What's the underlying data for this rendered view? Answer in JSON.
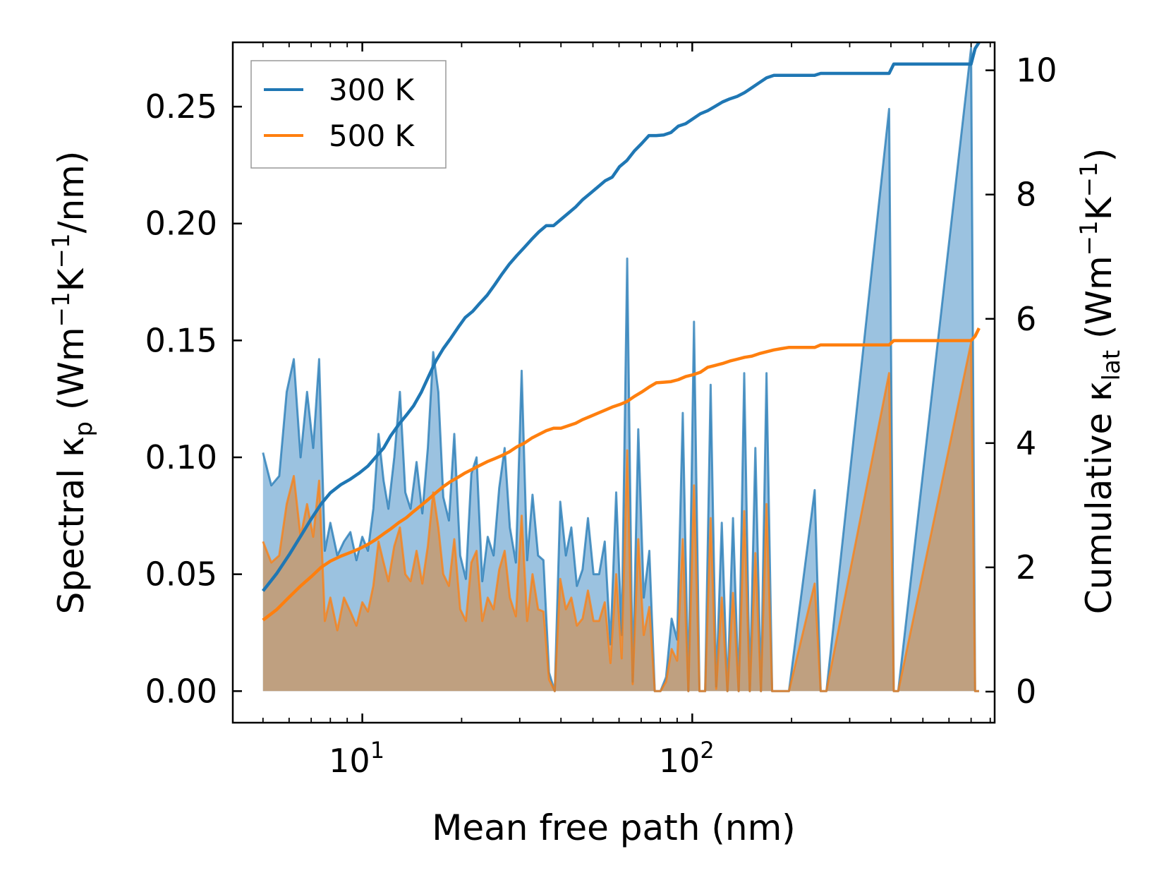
{
  "chart_data": {
    "type": "line",
    "xlabel": "Mean free path (nm)",
    "ylabel_left": "Spectral κ",
    "ylabel_left_sub": "p",
    "ylabel_left_units": {
      "open": " (Wm",
      "exp1": "−1",
      "mid": "K",
      "exp2": "−1",
      "close": "/nm)"
    },
    "ylabel_right": "Cumulative κ",
    "ylabel_right_sub": "lat",
    "ylabel_right_units": {
      "open": " (Wm",
      "exp1": "−1",
      "mid": "K",
      "exp2": "−1",
      "close": ")"
    },
    "x_scale": "log",
    "xlim": [
      4.05,
      825
    ],
    "xticks": [
      {
        "value": 10,
        "base": "10",
        "exp": "1"
      },
      {
        "value": 100,
        "base": "10",
        "exp": "2"
      }
    ],
    "ylim_left": [
      -0.0135,
      0.2775
    ],
    "yticks_left": [
      "0.00",
      "0.05",
      "0.10",
      "0.15",
      "0.20",
      "0.25"
    ],
    "ylim_right": [
      -0.5,
      10.45
    ],
    "yticks_right": [
      "0",
      "2",
      "4",
      "6",
      "8",
      "10"
    ],
    "legend": {
      "position": "top-left",
      "entries": [
        "300 K",
        "500 K"
      ]
    },
    "colors": {
      "s300": "#1f77b4",
      "s500": "#ff7f0e",
      "fill300": "#8dbadc",
      "fill500": "#c49b72"
    },
    "series": [
      {
        "name": "300 K",
        "spectral": {
          "x": [
            5.0,
            5.3,
            5.6,
            5.9,
            6.2,
            6.5,
            6.8,
            7.1,
            7.4,
            7.7,
            8.0,
            8.4,
            8.8,
            9.2,
            9.6,
            10.0,
            10.4,
            10.8,
            11.2,
            11.6,
            12.0,
            12.5,
            13.0,
            13.5,
            14.0,
            14.6,
            15.2,
            15.8,
            16.4,
            17.0,
            17.6,
            18.3,
            19.0,
            19.8,
            20.6,
            21.4,
            22.2,
            23.1,
            24.0,
            25.0,
            26.0,
            27.0,
            28.0,
            29.2,
            30.4,
            31.6,
            32.8,
            34.1,
            35.4,
            36.8,
            38.3,
            39.8,
            41.4,
            43.0,
            44.7,
            46.5,
            48.3,
            50.2,
            52.2,
            54.3,
            56.5,
            58.8,
            61.1,
            63.5,
            66.0,
            68.6,
            71.3,
            74.1,
            77.0,
            80.1,
            83.3,
            86.6,
            90.0,
            93.6,
            97.3,
            101.2,
            105.2,
            109.4,
            113.7,
            118.2,
            122.9,
            127.8,
            132.9,
            138.2,
            143.7,
            149.4,
            155.3,
            161.5,
            167.9,
            174.6,
            181.6,
            188.8,
            196.3,
            235,
            245,
            255,
            395,
            408,
            421,
            700,
            720,
            740
          ],
          "y": [
            0.102,
            0.088,
            0.092,
            0.128,
            0.142,
            0.1,
            0.128,
            0.104,
            0.142,
            0.06,
            0.072,
            0.058,
            0.064,
            0.068,
            0.056,
            0.066,
            0.06,
            0.078,
            0.11,
            0.09,
            0.078,
            0.1,
            0.128,
            0.085,
            0.078,
            0.098,
            0.076,
            0.104,
            0.145,
            0.128,
            0.083,
            0.073,
            0.11,
            0.058,
            0.048,
            0.093,
            0.1,
            0.047,
            0.066,
            0.058,
            0.087,
            0.104,
            0.07,
            0.055,
            0.137,
            0.056,
            0.084,
            0.058,
            0.056,
            0.008,
            0.0,
            0.081,
            0.058,
            0.07,
            0.045,
            0.052,
            0.074,
            0.05,
            0.05,
            0.064,
            0.02,
            0.085,
            0.024,
            0.185,
            0.004,
            0.112,
            0.04,
            0.06,
            0.0,
            0.0,
            0.006,
            0.031,
            0.022,
            0.119,
            0.0,
            0.158,
            0.0,
            0.0,
            0.131,
            0.002,
            0.072,
            0.0,
            0.074,
            0.0,
            0.136,
            0.0,
            0.104,
            0.0,
            0.136,
            0.0,
            0.0,
            0.0,
            0.0,
            0.086,
            0.0,
            0.0,
            0.249,
            0.0,
            0.0,
            0.275,
            0.0,
            0.0
          ]
        },
        "cumulative": {
          "x": [
            5.0,
            5.5,
            6.0,
            6.5,
            7.0,
            7.5,
            8.0,
            8.6,
            9.2,
            9.8,
            10.4,
            11.0,
            11.6,
            12.2,
            12.9,
            13.6,
            14.3,
            15.1,
            15.9,
            16.7,
            17.6,
            18.5,
            19.5,
            20.5,
            21.6,
            22.7,
            23.9,
            25.2,
            26.5,
            27.9,
            29.4,
            31.0,
            32.6,
            34.3,
            36.1,
            38.0,
            40.0,
            42.1,
            44.3,
            46.6,
            49.1,
            51.7,
            54.4,
            57.2,
            60.2,
            63.4,
            66.7,
            70.2,
            73.9,
            77.8,
            81.9,
            86.2,
            90.7,
            95.5,
            100.5,
            105.8,
            111.4,
            117.3,
            123.5,
            130.0,
            136.8,
            144.0,
            151.6,
            159.6,
            168.0,
            176.8,
            186.1,
            195.9,
            235,
            245,
            395,
            408,
            700,
            720,
            740
          ],
          "y": [
            1.62,
            1.9,
            2.2,
            2.5,
            2.78,
            3.02,
            3.2,
            3.33,
            3.42,
            3.52,
            3.63,
            3.78,
            3.92,
            4.12,
            4.3,
            4.45,
            4.6,
            4.82,
            5.08,
            5.32,
            5.52,
            5.68,
            5.86,
            6.02,
            6.12,
            6.25,
            6.38,
            6.55,
            6.72,
            6.88,
            7.02,
            7.15,
            7.28,
            7.4,
            7.5,
            7.5,
            7.6,
            7.7,
            7.8,
            7.92,
            8.02,
            8.12,
            8.22,
            8.28,
            8.45,
            8.55,
            8.7,
            8.82,
            8.95,
            8.95,
            8.96,
            9.0,
            9.1,
            9.14,
            9.22,
            9.3,
            9.35,
            9.42,
            9.49,
            9.54,
            9.58,
            9.64,
            9.72,
            9.8,
            9.88,
            9.92,
            9.92,
            9.92,
            9.92,
            9.95,
            9.95,
            10.1,
            10.1,
            10.35,
            10.45
          ]
        }
      },
      {
        "name": "500 K",
        "spectral": {
          "x": [
            5.0,
            5.3,
            5.6,
            5.9,
            6.2,
            6.5,
            6.8,
            7.1,
            7.4,
            7.7,
            8.0,
            8.4,
            8.8,
            9.2,
            9.6,
            10.0,
            10.4,
            10.8,
            11.2,
            11.6,
            12.0,
            12.5,
            13.0,
            13.5,
            14.0,
            14.6,
            15.2,
            15.8,
            16.4,
            17.0,
            17.6,
            18.3,
            19.0,
            19.8,
            20.6,
            21.4,
            22.2,
            23.1,
            24.0,
            25.0,
            26.0,
            27.0,
            28.0,
            29.2,
            30.4,
            31.6,
            32.8,
            34.1,
            35.4,
            36.8,
            38.3,
            39.8,
            41.4,
            43.0,
            44.7,
            46.5,
            48.3,
            50.2,
            52.2,
            54.3,
            56.5,
            58.8,
            61.1,
            63.5,
            66.0,
            68.6,
            71.3,
            74.1,
            77.0,
            80.1,
            83.3,
            86.6,
            90.0,
            93.6,
            97.3,
            101.2,
            105.2,
            109.4,
            113.7,
            118.2,
            122.9,
            127.8,
            132.9,
            138.2,
            143.7,
            149.4,
            155.3,
            161.5,
            167.9,
            174.6,
            181.6,
            188.8,
            196.3,
            235,
            245,
            255,
            395,
            408,
            421,
            700,
            720,
            740
          ],
          "y": [
            0.064,
            0.055,
            0.058,
            0.08,
            0.092,
            0.066,
            0.08,
            0.066,
            0.09,
            0.03,
            0.04,
            0.026,
            0.04,
            0.034,
            0.028,
            0.038,
            0.034,
            0.045,
            0.064,
            0.055,
            0.047,
            0.062,
            0.07,
            0.05,
            0.047,
            0.06,
            0.046,
            0.062,
            0.085,
            0.07,
            0.05,
            0.045,
            0.065,
            0.035,
            0.03,
            0.055,
            0.06,
            0.03,
            0.04,
            0.035,
            0.052,
            0.06,
            0.04,
            0.032,
            0.075,
            0.03,
            0.05,
            0.035,
            0.034,
            0.005,
            0.0,
            0.048,
            0.035,
            0.04,
            0.028,
            0.031,
            0.043,
            0.03,
            0.03,
            0.038,
            0.012,
            0.05,
            0.014,
            0.103,
            0.003,
            0.065,
            0.024,
            0.036,
            0.0,
            0.0,
            0.004,
            0.018,
            0.013,
            0.065,
            0.0,
            0.088,
            0.0,
            0.0,
            0.074,
            0.001,
            0.04,
            0.0,
            0.042,
            0.0,
            0.077,
            0.0,
            0.059,
            0.0,
            0.08,
            0.0,
            0.0,
            0.0,
            0.0,
            0.046,
            0.0,
            0.0,
            0.136,
            0.0,
            0.0,
            0.149,
            0.0,
            0.0
          ]
        },
        "cumulative": {
          "x": [
            5.0,
            5.5,
            6.0,
            6.5,
            7.0,
            7.5,
            8.0,
            8.6,
            9.2,
            9.8,
            10.4,
            11.0,
            11.6,
            12.2,
            12.9,
            13.6,
            14.3,
            15.1,
            15.9,
            16.7,
            17.6,
            18.5,
            19.5,
            20.5,
            21.6,
            22.7,
            23.9,
            25.2,
            26.5,
            27.9,
            29.4,
            31.0,
            32.6,
            34.3,
            36.1,
            38.0,
            40.0,
            42.1,
            44.3,
            46.6,
            49.1,
            51.7,
            54.4,
            57.2,
            60.2,
            63.4,
            66.7,
            70.2,
            73.9,
            77.8,
            81.9,
            86.2,
            90.7,
            95.5,
            100.5,
            105.8,
            111.4,
            117.3,
            123.5,
            130.0,
            136.8,
            144.0,
            151.6,
            159.6,
            168.0,
            176.8,
            186.1,
            195.9,
            235,
            245,
            395,
            408,
            700,
            720,
            740
          ],
          "y": [
            1.15,
            1.32,
            1.52,
            1.7,
            1.85,
            2.0,
            2.1,
            2.18,
            2.24,
            2.3,
            2.37,
            2.45,
            2.54,
            2.62,
            2.72,
            2.8,
            2.9,
            3.0,
            3.1,
            3.2,
            3.3,
            3.38,
            3.45,
            3.52,
            3.58,
            3.64,
            3.7,
            3.75,
            3.8,
            3.86,
            3.94,
            4.0,
            4.08,
            4.14,
            4.2,
            4.24,
            4.24,
            4.28,
            4.32,
            4.38,
            4.43,
            4.48,
            4.53,
            4.58,
            4.62,
            4.67,
            4.75,
            4.82,
            4.9,
            4.97,
            4.98,
            4.99,
            5.02,
            5.07,
            5.1,
            5.14,
            5.22,
            5.25,
            5.28,
            5.32,
            5.35,
            5.38,
            5.4,
            5.44,
            5.47,
            5.5,
            5.52,
            5.54,
            5.54,
            5.58,
            5.58,
            5.65,
            5.65,
            5.72,
            5.85
          ]
        }
      }
    ]
  }
}
